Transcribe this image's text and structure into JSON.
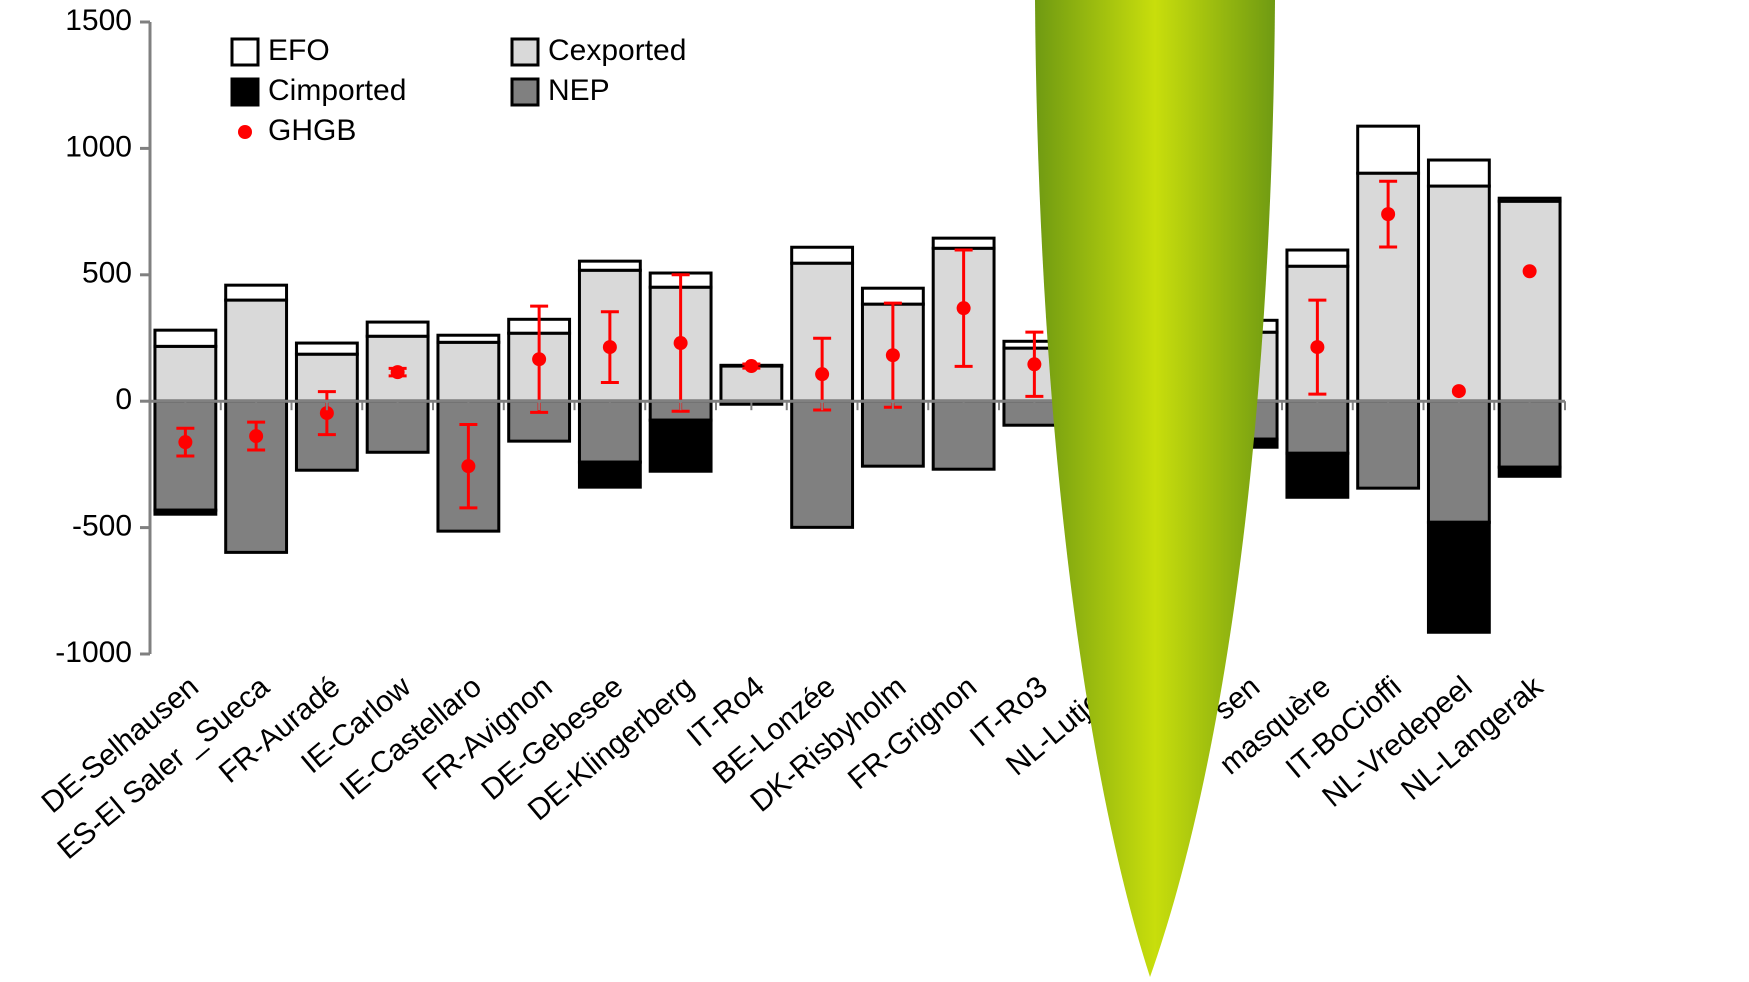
{
  "chart_data": {
    "type": "bar",
    "stacked": true,
    "categories": [
      "DE-Selhausen",
      "ES-El Saler _Sueca",
      "FR-Auradé",
      "IE-Carlow",
      "IE-Castellaro",
      "FR-Avignon",
      "DE-Gebesee",
      "DE-Klingerberg",
      "IT-Ro4",
      "BE-Lonzée",
      "DK-Risbyholm",
      "FR-Grignon",
      "IT-Ro3",
      "NL-Lutjew",
      null,
      "sen",
      "masquère",
      "IT-BoCioffi",
      "NL-Vredepeel",
      "NL-Langerak"
    ],
    "series": [
      {
        "name": "Cexported",
        "color": "#d9d9d9",
        "values": [
          217,
          400,
          186,
          257,
          233,
          269,
          518,
          451,
          139,
          546,
          384,
          605,
          210,
          null,
          null,
          273,
          534,
          902,
          851,
          791
        ]
      },
      {
        "name": "EFO",
        "color": "#ffffff",
        "values": [
          64,
          59,
          44,
          56,
          28,
          55,
          36,
          56,
          3,
          63,
          63,
          40,
          27,
          null,
          null,
          47,
          64,
          186,
          103,
          12
        ]
      },
      {
        "name": "NEP",
        "color": "#808080",
        "values": [
          -431,
          -598,
          -273,
          -202,
          -514,
          -158,
          -241,
          -75,
          -12,
          -499,
          -257,
          -269,
          -95,
          null,
          null,
          -150,
          -206,
          -344,
          -479,
          -261
        ]
      },
      {
        "name": "Cimported",
        "color": "#000000",
        "values": [
          -16,
          0,
          0,
          0,
          0,
          0,
          -99,
          -202,
          0,
          0,
          0,
          0,
          0,
          null,
          null,
          -32,
          -174,
          0,
          -435,
          -36
        ]
      },
      {
        "name": "GHGB",
        "color": "#ff0000",
        "type": "scatter",
        "values": [
          -162,
          -138,
          -47,
          115,
          -257,
          166,
          214,
          230,
          139,
          107,
          182,
          368,
          146,
          null,
          null,
          71,
          214,
          740,
          40,
          514
        ],
        "errors": [
          55,
          55,
          85,
          15,
          165,
          210,
          140,
          270,
          8,
          142,
          206,
          230,
          127,
          null,
          null,
          null,
          186,
          130,
          null,
          null
        ]
      }
    ],
    "legend_order": [
      1,
      0,
      3,
      2,
      4
    ],
    "ylim": [
      -1000,
      1500
    ],
    "yticks": [
      -1000,
      -500,
      0,
      500,
      1000,
      1500
    ]
  }
}
